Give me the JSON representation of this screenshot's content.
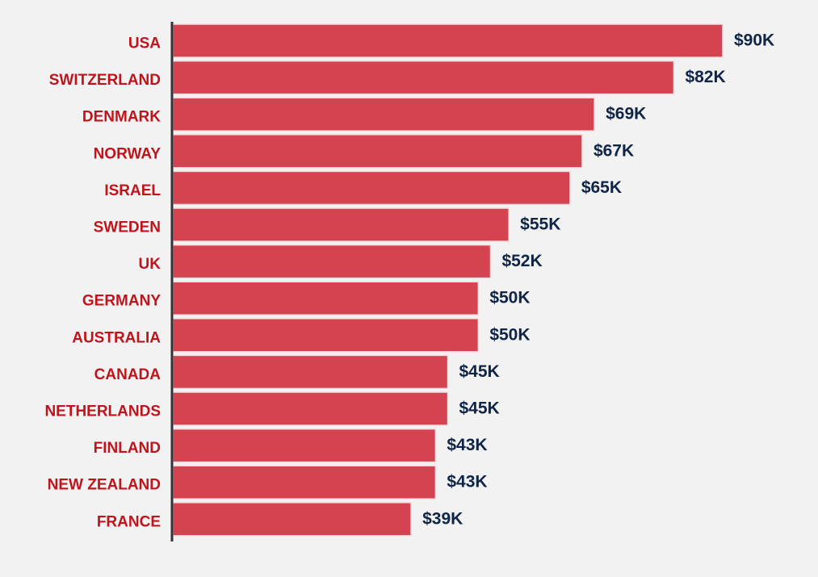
{
  "chart_data": {
    "type": "bar",
    "orientation": "horizontal",
    "title": "",
    "xlabel": "",
    "ylabel": "",
    "categories": [
      "USA",
      "SWITZERLAND",
      "DENMARK",
      "NORWAY",
      "ISRAEL",
      "SWEDEN",
      "UK",
      "GERMANY",
      "AUSTRALIA",
      "CANADA",
      "NETHERLANDS",
      "FINLAND",
      "NEW ZEALAND",
      "FRANCE"
    ],
    "values": [
      90,
      82,
      69,
      67,
      65,
      55,
      52,
      50,
      50,
      45,
      45,
      43,
      43,
      39
    ],
    "value_labels": [
      "$90K",
      "$82K",
      "$69K",
      "$67K",
      "$65K",
      "$55K",
      "$52K",
      "$50K",
      "$50K",
      "$45K",
      "$45K",
      "$43K",
      "$43K",
      "$39K"
    ],
    "xlim": [
      0,
      90
    ],
    "grid": false,
    "legend": "none",
    "colors": {
      "bar": "#d34450",
      "bar_edge": "#f4dde0",
      "category_label": "#c0141c",
      "value_label": "#0f2548",
      "axis": "#333333",
      "background": "#f2f2f2"
    }
  }
}
